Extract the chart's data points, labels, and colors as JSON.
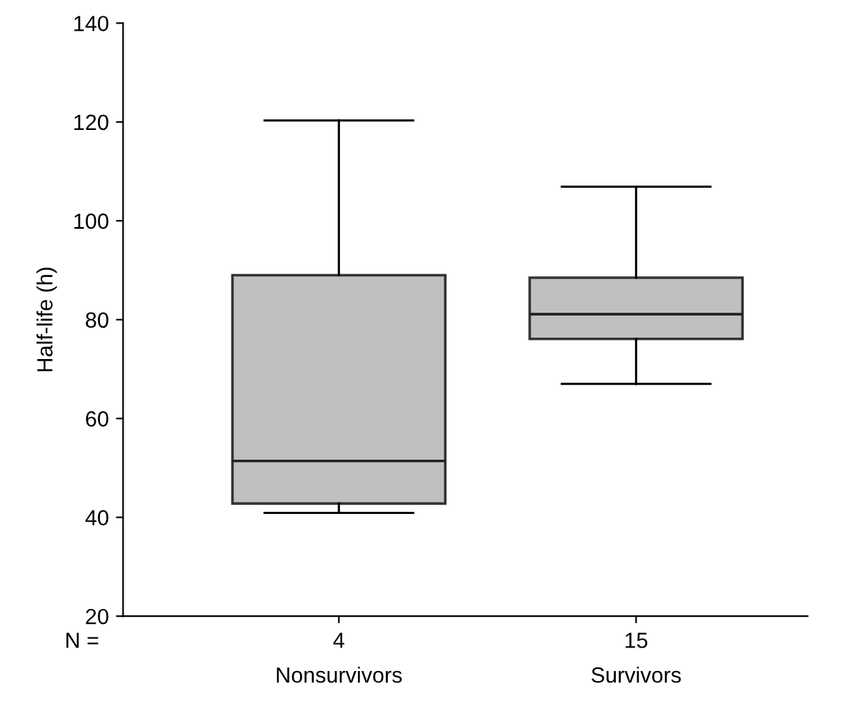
{
  "chart_data": {
    "type": "box",
    "ylabel": "Half-life (h)",
    "categories": [
      "Nonsurvivors",
      "Survivors"
    ],
    "boxes": [
      {
        "low": 40.9,
        "q1": 42.8,
        "median": 51.4,
        "q3": 89.0,
        "high": 120.3
      },
      {
        "low": 67.0,
        "q1": 76.1,
        "median": 81.1,
        "q3": 88.5,
        "high": 106.9
      }
    ],
    "color": "#c0c0c0",
    "ylim": [
      20,
      140
    ],
    "yticks": [
      20,
      40,
      60,
      80,
      100,
      120,
      140
    ],
    "annotations": [
      "N =",
      "4",
      "15"
    ],
    "grid": false
  }
}
